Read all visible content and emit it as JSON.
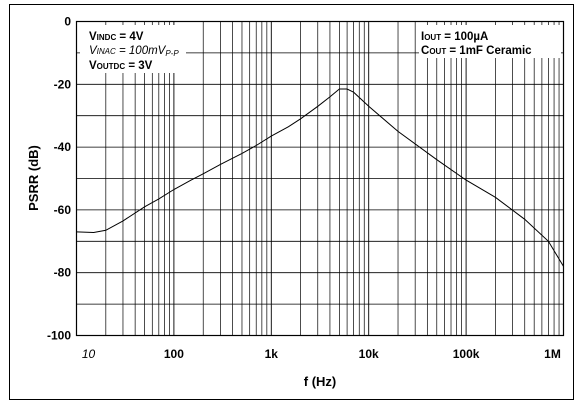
{
  "chart_data": {
    "type": "line",
    "title": "",
    "xlabel": "f (Hz)",
    "ylabel": "PSRR (dB)",
    "x_scale": "log",
    "xlim": [
      10,
      1000000
    ],
    "ylim": [
      -100,
      0
    ],
    "grid": true,
    "x_ticks": [
      "10",
      "100",
      "1k",
      "10k",
      "100k",
      "1M"
    ],
    "y_ticks": [
      "0",
      "-20",
      "-40",
      "-60",
      "-80",
      "-100"
    ],
    "annotations": {
      "left": [
        {
          "main": "V",
          "sub": "INDC",
          "rest": " = 4V",
          "italic": false
        },
        {
          "main": "V",
          "sub": "INAC",
          "rest": " = 100mV",
          "sub2": "P-P",
          "italic": true
        },
        {
          "main": "V",
          "sub": "OUTDC",
          "rest": " = 3V",
          "italic": false
        }
      ],
      "right": [
        {
          "main": "I",
          "sub": "OUT",
          "rest": " = 100µA"
        },
        {
          "main": "C",
          "sub": "OUT",
          "rest": " = 1mF Ceramic"
        }
      ]
    },
    "series": [
      {
        "x": [
          10,
          15,
          20,
          30,
          50,
          70,
          100,
          150,
          200,
          300,
          500,
          700,
          1000,
          1500,
          2000,
          3000,
          4000,
          5000,
          6000,
          7000,
          10000,
          20000,
          50000,
          100000,
          200000,
          400000,
          700000,
          1000000
        ],
        "y": [
          -67,
          -67.2,
          -66.5,
          -63.5,
          -59,
          -56.5,
          -53.5,
          -50.5,
          -48.5,
          -45.5,
          -42,
          -39.5,
          -36.5,
          -33.5,
          -31,
          -27,
          -24,
          -21.5,
          -21.5,
          -22.5,
          -27,
          -35,
          -44,
          -50.5,
          -56,
          -63,
          -70,
          -78
        ]
      }
    ]
  }
}
